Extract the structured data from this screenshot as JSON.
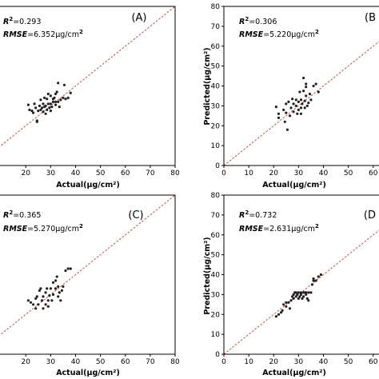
{
  "chart_data": [
    {
      "type": "scatter",
      "panel_label": "(A)",
      "r2_label": "R",
      "r2_sup": "2",
      "r2_value": "=0.293",
      "rmse_label": "RMSE",
      "rmse_value": "=6.352μg/cm",
      "rmse_sup": "2",
      "xlabel": "Actual(μg/cm²)",
      "ylabel": "",
      "xlim": [
        0,
        80
      ],
      "ylim": [
        0,
        80
      ],
      "xticks": [
        "20",
        "30",
        "40",
        "50",
        "60",
        "70",
        "80"
      ],
      "yticks": [],
      "points": [
        [
          21,
          30.5
        ],
        [
          21.5,
          28
        ],
        [
          22.5,
          27.5
        ],
        [
          23,
          26.5
        ],
        [
          23.5,
          31
        ],
        [
          24,
          29
        ],
        [
          24.5,
          22.5
        ],
        [
          24.5,
          22
        ],
        [
          25,
          27.5
        ],
        [
          25.5,
          30
        ],
        [
          26,
          28
        ],
        [
          26,
          33
        ],
        [
          26.5,
          29
        ],
        [
          27,
          27
        ],
        [
          27,
          31
        ],
        [
          27.5,
          29.5
        ],
        [
          27.5,
          34
        ],
        [
          28,
          26
        ],
        [
          28,
          30
        ],
        [
          28.5,
          28
        ],
        [
          28.5,
          33.5
        ],
        [
          29,
          31
        ],
        [
          29,
          36
        ],
        [
          29.5,
          29
        ],
        [
          30,
          27.5
        ],
        [
          30,
          31
        ],
        [
          30,
          35
        ],
        [
          30.5,
          29.5
        ],
        [
          31,
          32
        ],
        [
          31,
          33.5
        ],
        [
          31.5,
          34
        ],
        [
          32,
          30.5
        ],
        [
          32,
          36
        ],
        [
          32,
          32
        ],
        [
          32.5,
          37
        ],
        [
          33,
          41.5
        ],
        [
          33,
          32
        ],
        [
          33.5,
          29.5
        ],
        [
          34,
          33
        ],
        [
          35,
          34
        ],
        [
          35.5,
          40.5
        ],
        [
          36,
          33.5
        ],
        [
          37,
          34
        ],
        [
          38,
          36.5
        ]
      ]
    },
    {
      "type": "scatter",
      "panel_label": "(B",
      "r2_label": "R",
      "r2_sup": "2",
      "r2_value": "=0.306",
      "rmse_label": "RMSE",
      "rmse_value": "=5.220μg/cm",
      "rmse_sup": "2",
      "xlabel": "Actual(μg/cm²)",
      "ylabel": "Predicted(μg/cm²)",
      "xlim": [
        0,
        80
      ],
      "ylim": [
        0,
        80
      ],
      "xticks": [
        "0",
        "10",
        "20",
        "30",
        "40",
        "50",
        "60"
      ],
      "yticks": [
        "0",
        "10",
        "20",
        "30",
        "40",
        "50",
        "60",
        "70",
        "80"
      ],
      "points": [
        [
          21,
          29.5
        ],
        [
          22,
          26
        ],
        [
          22,
          24
        ],
        [
          24,
          28
        ],
        [
          24.5,
          22
        ],
        [
          25,
          26.5
        ],
        [
          25,
          31
        ],
        [
          25.5,
          18
        ],
        [
          26,
          32
        ],
        [
          26.5,
          25
        ],
        [
          27,
          29
        ],
        [
          27.5,
          33.5
        ],
        [
          28,
          27
        ],
        [
          28,
          31
        ],
        [
          29,
          30
        ],
        [
          29,
          33
        ],
        [
          29.5,
          26
        ],
        [
          30,
          28
        ],
        [
          30,
          32
        ],
        [
          30.5,
          37
        ],
        [
          31,
          29
        ],
        [
          31,
          33
        ],
        [
          31,
          26
        ],
        [
          31.5,
          31
        ],
        [
          32,
          37.5
        ],
        [
          32,
          44
        ],
        [
          32.5,
          29
        ],
        [
          32.5,
          32.5
        ],
        [
          33,
          39.5
        ],
        [
          33,
          41
        ],
        [
          33,
          35
        ],
        [
          33.5,
          30
        ],
        [
          34,
          31.5
        ],
        [
          34.5,
          36
        ],
        [
          35,
          33
        ],
        [
          36,
          40
        ],
        [
          37,
          41
        ],
        [
          38,
          37
        ]
      ]
    },
    {
      "type": "scatter",
      "panel_label": "(C)",
      "r2_label": "R",
      "r2_sup": "2",
      "r2_value": "=0.365",
      "rmse_label": "RMSE",
      "rmse_value": "=5.270μg/cm",
      "rmse_sup": "2",
      "xlabel": "Actual(μg/cm²)",
      "ylabel": "",
      "xlim": [
        0,
        80
      ],
      "ylim": [
        0,
        80
      ],
      "xticks": [
        "20",
        "30",
        "40",
        "50",
        "60",
        "70",
        "80"
      ],
      "yticks": [],
      "points": [
        [
          21,
          27
        ],
        [
          22,
          26
        ],
        [
          23,
          25
        ],
        [
          24,
          28
        ],
        [
          24,
          23
        ],
        [
          24.5,
          29
        ],
        [
          25,
          25
        ],
        [
          25.5,
          32
        ],
        [
          26,
          33
        ],
        [
          26.5,
          27
        ],
        [
          27,
          29
        ],
        [
          27,
          23
        ],
        [
          28,
          31
        ],
        [
          28,
          25
        ],
        [
          28.5,
          33
        ],
        [
          29,
          27
        ],
        [
          29,
          24
        ],
        [
          29.5,
          29.5
        ],
        [
          30,
          33
        ],
        [
          30.5,
          27
        ],
        [
          31,
          36
        ],
        [
          31,
          30
        ],
        [
          32,
          37
        ],
        [
          32,
          33
        ],
        [
          32.5,
          39
        ],
        [
          33,
          29
        ],
        [
          33,
          34
        ],
        [
          33.5,
          31
        ],
        [
          34,
          27
        ],
        [
          34.5,
          32
        ],
        [
          35,
          34
        ],
        [
          36,
          42
        ],
        [
          37,
          43
        ],
        [
          38,
          43
        ]
      ]
    },
    {
      "type": "scatter",
      "panel_label": "(D",
      "r2_label": "R",
      "r2_sup": "2",
      "r2_value": "=0.732",
      "rmse_label": "RMSE",
      "rmse_value": "=2.631μg/cm",
      "rmse_sup": "2",
      "xlabel": "Actual(μg/cm²)",
      "ylabel": "Predicted(μg/cm²)",
      "xlim": [
        0,
        80
      ],
      "ylim": [
        0,
        80
      ],
      "xticks": [
        "0",
        "10",
        "20",
        "30",
        "40",
        "50",
        "60"
      ],
      "yticks": [
        "0",
        "10",
        "20",
        "30",
        "40",
        "50",
        "60",
        "70",
        "80"
      ],
      "points": [
        [
          21,
          19
        ],
        [
          22,
          20
        ],
        [
          23,
          21
        ],
        [
          23.5,
          22
        ],
        [
          24,
          25
        ],
        [
          25,
          24
        ],
        [
          25,
          26
        ],
        [
          26,
          26
        ],
        [
          26.5,
          23
        ],
        [
          27,
          27
        ],
        [
          27.5,
          29
        ],
        [
          28,
          28
        ],
        [
          28,
          30
        ],
        [
          28.5,
          31
        ],
        [
          29,
          29
        ],
        [
          29,
          31
        ],
        [
          29.5,
          30
        ],
        [
          30,
          28
        ],
        [
          30,
          31
        ],
        [
          30.5,
          29
        ],
        [
          31,
          30
        ],
        [
          31,
          31
        ],
        [
          31.5,
          28
        ],
        [
          32,
          31
        ],
        [
          32,
          29
        ],
        [
          32.5,
          31
        ],
        [
          33,
          30
        ],
        [
          33,
          31
        ],
        [
          33.5,
          28
        ],
        [
          34,
          31
        ],
        [
          34,
          27
        ],
        [
          35,
          31
        ],
        [
          35.5,
          35
        ],
        [
          36,
          37
        ],
        [
          36,
          38
        ],
        [
          37,
          37
        ],
        [
          38,
          39
        ],
        [
          39,
          40
        ]
      ]
    }
  ]
}
